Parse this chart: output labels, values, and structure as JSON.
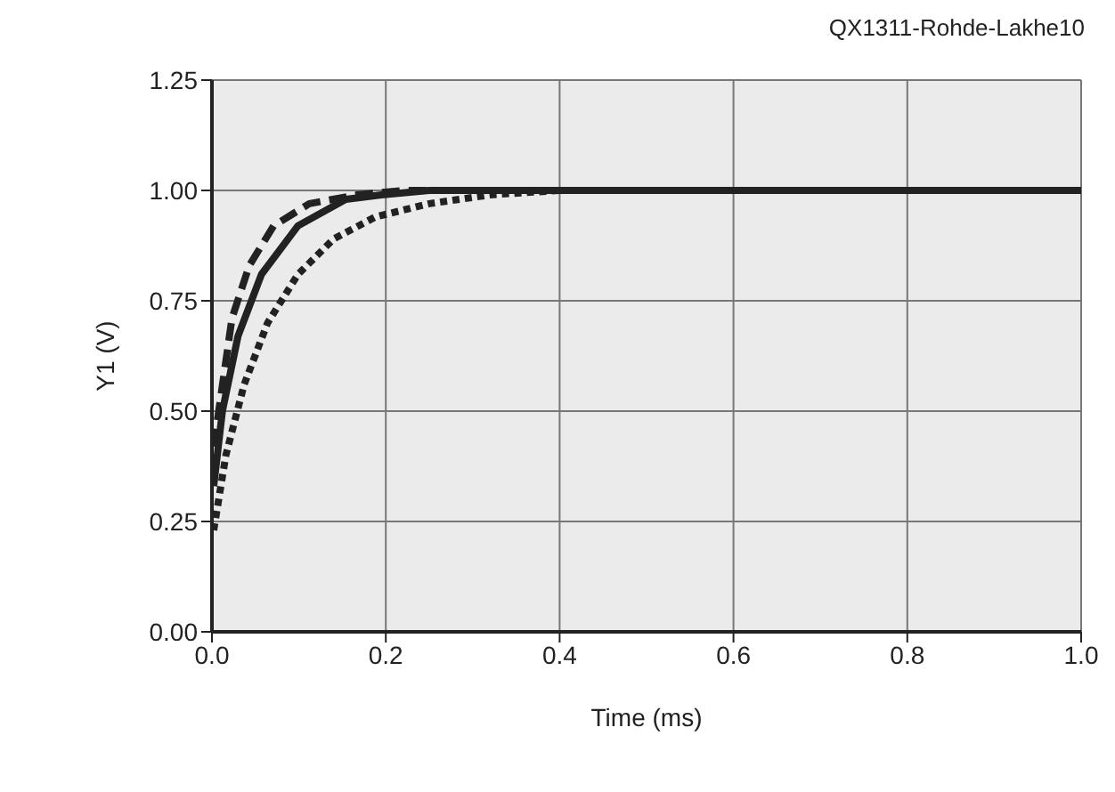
{
  "chart_data": {
    "type": "line",
    "xlabel": "Time (ms)",
    "ylabel": "Y1 (V)",
    "annotations": [
      "QX1311-Rohde-Lakhe10"
    ],
    "xlim": [
      0,
      1
    ],
    "xticks": [
      {
        "value": 0,
        "label": "0.0"
      },
      {
        "value": 0.2,
        "label": "0.2"
      },
      {
        "value": 0.4,
        "label": "0.4"
      },
      {
        "value": 0.6,
        "label": "0.6"
      },
      {
        "value": 0.8,
        "label": "0.8"
      },
      {
        "value": 1,
        "label": "1.0"
      }
    ],
    "ylim": [
      0,
      1.25
    ],
    "yticks": [
      {
        "value": 0,
        "label": "0.00"
      },
      {
        "value": 0.25,
        "label": "0.25"
      },
      {
        "value": 0.5,
        "label": "0.50"
      },
      {
        "value": 0.75,
        "label": "0.75"
      },
      {
        "value": 1,
        "label": "1.00"
      },
      {
        "value": 1.25,
        "label": "1.25"
      }
    ],
    "grid": true,
    "marker": "none",
    "series": [
      {
        "color": "#222222",
        "line_style": "dashed",
        "x": [
          0.002,
          0.023,
          0.043,
          0.071,
          0.112,
          0.167,
          0.22,
          0.3,
          0.5,
          0.7,
          1.0
        ],
        "values": [
          0.42,
          0.71,
          0.83,
          0.92,
          0.97,
          0.99,
          1.0,
          1.0,
          1.0,
          1.0,
          1.0
        ]
      },
      {
        "color": "#222222",
        "line_style": "solid",
        "x": [
          0.002,
          0.012,
          0.03,
          0.057,
          0.099,
          0.154,
          0.195,
          0.25,
          0.4,
          0.6,
          0.8,
          1.0
        ],
        "values": [
          0.33,
          0.5,
          0.67,
          0.81,
          0.92,
          0.98,
          0.99,
          1.0,
          1.0,
          1.0,
          1.0,
          1.0
        ]
      },
      {
        "color": "#222222",
        "line_style": "dotted",
        "x": [
          0.002,
          0.016,
          0.037,
          0.064,
          0.099,
          0.14,
          0.188,
          0.25,
          0.32,
          0.4,
          0.6,
          0.8,
          1.0
        ],
        "values": [
          0.23,
          0.4,
          0.56,
          0.7,
          0.81,
          0.89,
          0.94,
          0.97,
          0.99,
          1.0,
          1.0,
          1.0,
          1.0
        ]
      }
    ]
  }
}
